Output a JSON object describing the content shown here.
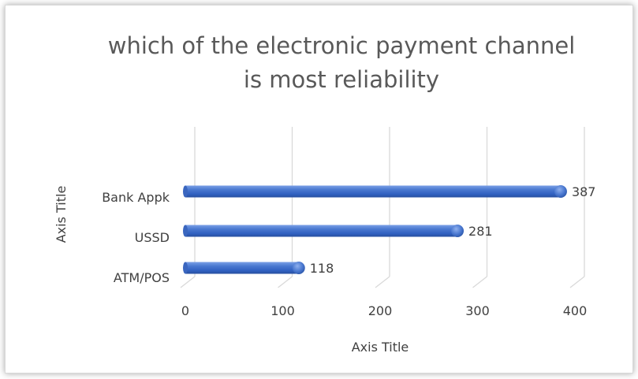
{
  "chart_data": {
    "type": "bar",
    "orientation": "horizontal",
    "title_lines": [
      "which of the electronic payment channel",
      "is most reliability"
    ],
    "categories": [
      "Bank Appk",
      "USSD",
      "ATM/POS"
    ],
    "values": [
      387,
      281,
      118
    ],
    "xlabel": "Axis Title",
    "ylabel": "Axis Title",
    "xlim": [
      0,
      400
    ],
    "x_ticks": [
      "0",
      "100",
      "200",
      "300",
      "400"
    ],
    "grid": true,
    "legend": "none",
    "bar_color": "#4472c4"
  }
}
